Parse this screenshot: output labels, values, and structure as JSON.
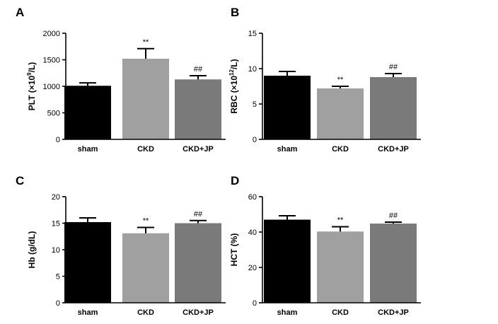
{
  "chart_data": [
    {
      "type": "bar",
      "panel": "A",
      "ylabel_main": "PLT (×10",
      "ylabel_sup": "9",
      "ylabel_end": "/L)",
      "categories": [
        "sham",
        "CKD",
        "CKD+JP"
      ],
      "values": [
        1010,
        1520,
        1130
      ],
      "errors": [
        55,
        190,
        70
      ],
      "annotations": [
        "",
        "**",
        "##"
      ],
      "ylim": [
        0,
        2000
      ],
      "yticks": [
        "0",
        "500",
        "1000",
        "1500",
        "2000"
      ],
      "colors": [
        "#000000",
        "#a0a0a0",
        "#7a7a7a"
      ]
    },
    {
      "type": "bar",
      "panel": "B",
      "ylabel_main": "RBC (×10",
      "ylabel_sup": "12",
      "ylabel_end": "/L)",
      "categories": [
        "sham",
        "CKD",
        "CKD+JP"
      ],
      "values": [
        9.0,
        7.2,
        8.8
      ],
      "errors": [
        0.6,
        0.3,
        0.5
      ],
      "annotations": [
        "",
        "**",
        "##"
      ],
      "ylim": [
        0,
        15
      ],
      "yticks": [
        "0",
        "5",
        "10",
        "15"
      ],
      "colors": [
        "#000000",
        "#a0a0a0",
        "#7a7a7a"
      ]
    },
    {
      "type": "bar",
      "panel": "C",
      "ylabel_main": "Hb  (g/dL)",
      "ylabel_sup": "",
      "ylabel_end": "",
      "categories": [
        "sham",
        "CKD",
        "CKD+JP"
      ],
      "values": [
        15.2,
        13.1,
        15.0
      ],
      "errors": [
        0.8,
        1.1,
        0.5
      ],
      "annotations": [
        "",
        "**",
        "##"
      ],
      "ylim": [
        0,
        20
      ],
      "yticks": [
        "0",
        "5",
        "10",
        "15",
        "20"
      ],
      "colors": [
        "#000000",
        "#a0a0a0",
        "#7a7a7a"
      ]
    },
    {
      "type": "bar",
      "panel": "D",
      "ylabel_main": "HCT (%)",
      "ylabel_sup": "",
      "ylabel_end": "",
      "categories": [
        "sham",
        "CKD",
        "CKD+JP"
      ],
      "values": [
        47,
        40.3,
        44.8
      ],
      "errors": [
        2.2,
        2.7,
        0.8
      ],
      "annotations": [
        "",
        "**",
        "##"
      ],
      "ylim": [
        0,
        60
      ],
      "yticks": [
        "0",
        "20",
        "40",
        "60"
      ],
      "colors": [
        "#000000",
        "#a0a0a0",
        "#7a7a7a"
      ]
    }
  ]
}
